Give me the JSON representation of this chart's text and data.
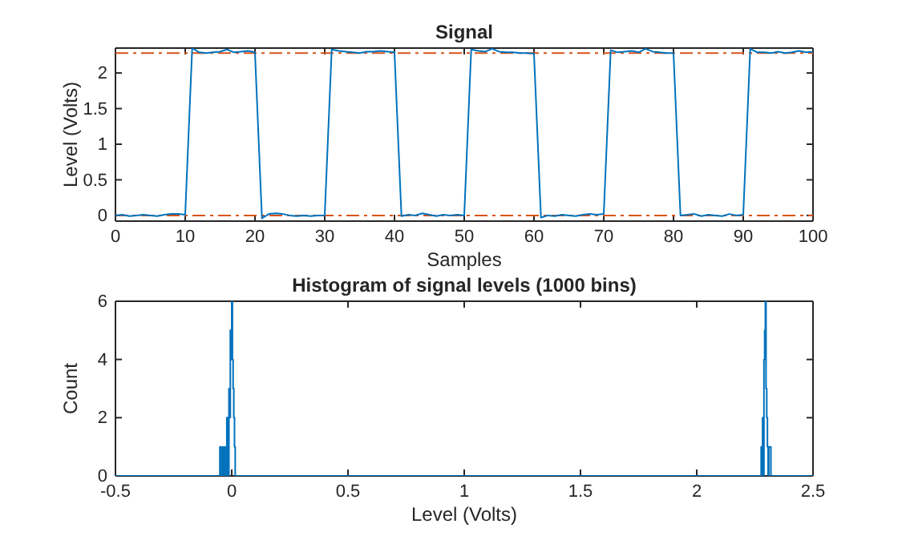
{
  "chart_data": [
    {
      "type": "line",
      "title": "Signal",
      "xlabel": "Samples",
      "ylabel": "Level (Volts)",
      "x": [
        0,
        1,
        2,
        3,
        4,
        5,
        6,
        7,
        8,
        9,
        10,
        11,
        12,
        13,
        14,
        15,
        16,
        17,
        18,
        19,
        20,
        21,
        22,
        23,
        24,
        25,
        26,
        27,
        28,
        29,
        30,
        31,
        32,
        33,
        34,
        35,
        36,
        37,
        38,
        39,
        40,
        41,
        42,
        43,
        44,
        45,
        46,
        47,
        48,
        49,
        50,
        51,
        52,
        53,
        54,
        55,
        56,
        57,
        58,
        59,
        60,
        61,
        62,
        63,
        64,
        65,
        66,
        67,
        68,
        69,
        70,
        71,
        72,
        73,
        74,
        75,
        76,
        77,
        78,
        79,
        80,
        81,
        82,
        83,
        84,
        85,
        86,
        87,
        88,
        89,
        90,
        91,
        92,
        93,
        94,
        95,
        96,
        97,
        98,
        99,
        100
      ],
      "series": [
        {
          "color": "#0072bd",
          "values": [
            0.0,
            0.01,
            -0.01,
            0.0,
            0.01,
            0.0,
            -0.01,
            0.01,
            0.02,
            0.02,
            0.01,
            2.35,
            2.29,
            2.28,
            2.29,
            2.3,
            2.33,
            2.29,
            2.3,
            2.31,
            2.29,
            -0.04,
            0.02,
            0.03,
            0.02,
            0.0,
            -0.01,
            0.0,
            -0.01,
            0.0,
            0.0,
            2.33,
            2.31,
            2.3,
            2.29,
            2.28,
            2.3,
            2.3,
            2.31,
            2.3,
            2.29,
            -0.01,
            0.01,
            0.0,
            0.03,
            0.01,
            -0.01,
            0.01,
            0.0,
            0.01,
            0.0,
            2.33,
            2.31,
            2.3,
            2.34,
            2.3,
            2.29,
            2.29,
            2.28,
            2.28,
            2.27,
            -0.03,
            0.0,
            -0.01,
            0.01,
            0.0,
            -0.01,
            0.01,
            0.02,
            0.01,
            0.02,
            2.32,
            2.29,
            2.3,
            2.31,
            2.29,
            2.34,
            2.3,
            2.29,
            2.28,
            2.28,
            0.0,
            0.01,
            0.02,
            -0.01,
            0.01,
            0.0,
            -0.01,
            0.02,
            0.0,
            0.01,
            2.34,
            2.29,
            2.29,
            2.28,
            2.3,
            2.28,
            2.29,
            2.31,
            2.29,
            2.3
          ]
        }
      ],
      "xlim": [
        0,
        100
      ],
      "xticks": [
        0,
        10,
        20,
        30,
        40,
        50,
        60,
        70,
        80,
        90,
        100
      ],
      "ylim": [
        -0.08,
        2.35
      ],
      "yticks": [
        0,
        0.5,
        1,
        1.5,
        2
      ],
      "ref_lines": [
        {
          "axis": "y",
          "value": 2.28,
          "color": "#d95319",
          "line_style": "dashed"
        },
        {
          "axis": "y",
          "value": 0,
          "color": "#d95319",
          "line_style": "dashed"
        }
      ],
      "grid": false,
      "marker": "none",
      "line_style": "solid"
    },
    {
      "type": "step",
      "title": "Histogram of signal levels (1000 bins)",
      "xlabel": "Level (Volts)",
      "ylabel": "Count",
      "x": [
        -0.5,
        -0.051,
        -0.048,
        -0.041,
        -0.038,
        -0.031,
        -0.028,
        -0.021,
        -0.018,
        -0.012,
        -0.009,
        -0.006,
        -0.003,
        0,
        0.003,
        0.006,
        0.009,
        0.012,
        0.015,
        0.018,
        2.277,
        2.28,
        2.283,
        2.286,
        2.289,
        2.292,
        2.295,
        2.298,
        2.301,
        2.304,
        2.307,
        2.31,
        2.313,
        2.316,
        2.319,
        2.322,
        2.5
      ],
      "series": [
        {
          "color": "#0072bd",
          "values": [
            0,
            1,
            0,
            1,
            0,
            1,
            0,
            2,
            0,
            3,
            2,
            5,
            4,
            6,
            4,
            3,
            2,
            1,
            0,
            0,
            1,
            0,
            2,
            0,
            4,
            5,
            6,
            3,
            2,
            1,
            0,
            1,
            1,
            1,
            0,
            0,
            0
          ]
        }
      ],
      "xlim": [
        -0.5,
        2.5
      ],
      "xticks": [
        -0.5,
        0,
        0.5,
        1,
        1.5,
        2,
        2.5
      ],
      "ylim": [
        0,
        6
      ],
      "yticks": [
        0,
        2,
        4,
        6
      ],
      "grid": false,
      "marker": "none",
      "line_style": "solid"
    }
  ]
}
